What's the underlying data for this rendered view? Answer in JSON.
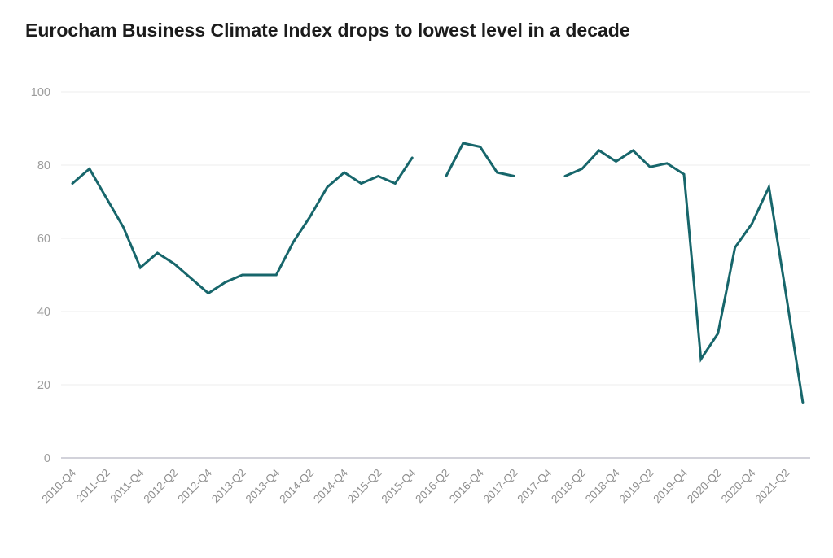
{
  "title": "Eurocham Business Climate Index drops to lowest level in a decade",
  "colors": {
    "line": "#17666b",
    "title": "#1b1b1b",
    "axis_labels": "#999999",
    "gridline": "#ececec",
    "baseline": "#d2d2da",
    "background": "#ffffff"
  },
  "chart_data": {
    "type": "line",
    "title": "Eurocham Business Climate Index drops to lowest level in a decade",
    "xlabel": "",
    "ylabel": "",
    "ylim": [
      0,
      100
    ],
    "yticks": [
      0,
      20,
      40,
      60,
      80,
      100
    ],
    "x_tick_every": 2,
    "grid": "horizontal-only",
    "legend_position": "none",
    "x": [
      "2010-Q4",
      "2011-Q1",
      "2011-Q2",
      "2011-Q3",
      "2011-Q4",
      "2012-Q1",
      "2012-Q2",
      "2012-Q3",
      "2012-Q4",
      "2013-Q1",
      "2013-Q2",
      "2013-Q3",
      "2013-Q4",
      "2014-Q1",
      "2014-Q2",
      "2014-Q3",
      "2014-Q4",
      "2015-Q1",
      "2015-Q2",
      "2015-Q3",
      "2015-Q4",
      "2016-Q1",
      "2016-Q2",
      "2016-Q3",
      "2016-Q4",
      "2017-Q1",
      "2017-Q2",
      "2017-Q3",
      "2017-Q4",
      "2018-Q1",
      "2018-Q2",
      "2018-Q3",
      "2018-Q4",
      "2019-Q1",
      "2019-Q2",
      "2019-Q3",
      "2019-Q4",
      "2020-Q1",
      "2020-Q2",
      "2020-Q3",
      "2020-Q4",
      "2021-Q1",
      "2021-Q2",
      "2021-Q3"
    ],
    "x_tick_labels": [
      "2010-Q4",
      "2011-Q2",
      "2011-Q4",
      "2012-Q2",
      "2012-Q4",
      "2013-Q2",
      "2013-Q4",
      "2014-Q2",
      "2014-Q4",
      "2015-Q2",
      "2015-Q4",
      "2016-Q2",
      "2016-Q4",
      "2017-Q2",
      "2017-Q4",
      "2018-Q2",
      "2018-Q4",
      "2019-Q2",
      "2019-Q4",
      "2020-Q2",
      "2020-Q4",
      "2021-Q2"
    ],
    "series": [
      {
        "name": "Eurocham Business Climate Index",
        "values": [
          75,
          79,
          71,
          63,
          52,
          56,
          53,
          49,
          45,
          48,
          50,
          50,
          50,
          59,
          66,
          74,
          78,
          75,
          77,
          75,
          82,
          null,
          77,
          86,
          85,
          78,
          77,
          null,
          null,
          77,
          79,
          84,
          81,
          84,
          79.5,
          80.5,
          77.5,
          27,
          34,
          57.5,
          64,
          74,
          45,
          15
        ]
      }
    ]
  },
  "layout_note": "line chart with gaps at 2016-Q1 and 2017-Q3/2017-Q4"
}
